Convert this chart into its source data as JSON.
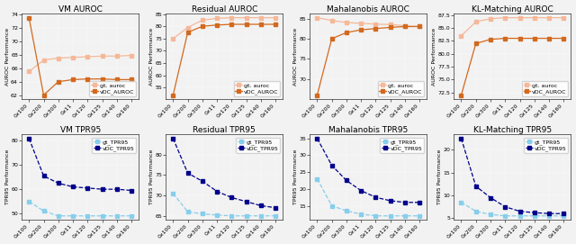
{
  "x_labels": [
    "0x100",
    "0x200",
    "0x300",
    "0x11",
    "0x120",
    "0x125",
    "0x140",
    "0x160"
  ],
  "vm_auroc": {
    "title": "VM AUROC",
    "ylabel": "AUROC Performance",
    "gt_auroc": [
      65.5,
      67.2,
      67.5,
      67.6,
      67.7,
      67.8,
      67.8,
      67.9
    ],
    "vdc_auroc": [
      73.5,
      62.0,
      64.0,
      64.3,
      64.4,
      64.4,
      64.3,
      64.3
    ],
    "gt_color": "#f5b899",
    "vdc_color": "#d2691e",
    "ylim_low": 73.5,
    "ylim_high": 68.5
  },
  "residual_auroc": {
    "title": "Residual AUROC",
    "ylabel": "AUROC Performance",
    "gt_auroc": [
      75.0,
      79.5,
      82.5,
      83.2,
      83.5,
      83.5,
      83.5,
      83.5
    ],
    "vdc_auroc": [
      52.0,
      77.5,
      80.0,
      80.5,
      80.8,
      80.8,
      80.8,
      80.8
    ],
    "gt_color": "#f5b899",
    "vdc_color": "#d2691e",
    "ylim_low": 52.0,
    "ylim_high": 84.0
  },
  "mahal_auroc": {
    "title": "Mahalanobis AUROC",
    "ylabel": "AUROC Performance",
    "gt_auroc": [
      85.2,
      84.5,
      84.0,
      83.8,
      83.6,
      83.5,
      83.2,
      83.0
    ],
    "vdc_auroc": [
      66.0,
      80.0,
      81.5,
      82.2,
      82.5,
      82.8,
      83.0,
      83.0
    ],
    "gt_color": "#f5b899",
    "vdc_color": "#d2691e",
    "ylim_low": 66.0,
    "ylim_high": 86.0
  },
  "kl_auroc": {
    "title": "KL-Matching AUROC",
    "ylabel": "AUROC Performance",
    "gt_auroc": [
      83.5,
      86.2,
      86.8,
      87.0,
      87.0,
      87.0,
      87.0,
      87.0
    ],
    "vdc_auroc": [
      72.0,
      82.0,
      82.8,
      83.0,
      83.0,
      83.0,
      83.0,
      83.0
    ],
    "gt_color": "#f5b899",
    "vdc_color": "#d2691e",
    "ylim_low": 71.5,
    "ylim_high": 87.5
  },
  "vm_tpr95": {
    "title": "VM TPR95",
    "ylabel": "TPR95 Performance",
    "gt_tpr95": [
      55.0,
      51.0,
      49.0,
      49.0,
      49.0,
      49.0,
      49.0,
      49.0
    ],
    "vdc_tpr95": [
      81.0,
      65.5,
      62.5,
      61.0,
      60.5,
      60.0,
      60.0,
      59.5
    ],
    "gt_color": "#87ceeb",
    "vdc_color": "#00008b",
    "ylim_low": 39.5,
    "ylim_high": 82.0
  },
  "residual_tpr95": {
    "title": "Residual TPR95",
    "ylabel": "TPR95 Performance",
    "gt_tpr95": [
      70.5,
      66.0,
      65.5,
      65.2,
      65.0,
      65.0,
      65.0,
      65.0
    ],
    "vdc_tpr95": [
      84.0,
      75.5,
      73.5,
      71.0,
      69.5,
      68.5,
      67.5,
      67.0
    ],
    "gt_color": "#87ceeb",
    "vdc_color": "#00008b",
    "ylim_low": 64.5,
    "ylim_high": 85.0
  },
  "mahal_tpr95": {
    "title": "Mahalanobis TPR95",
    "ylabel": "TPR95 Performance",
    "gt_tpr95": [
      23.0,
      15.0,
      13.5,
      12.5,
      12.0,
      12.0,
      12.0,
      12.0
    ],
    "vdc_tpr95": [
      35.0,
      27.0,
      22.5,
      19.5,
      17.5,
      16.5,
      16.0,
      16.0
    ],
    "gt_color": "#87ceeb",
    "vdc_color": "#00008b",
    "ylim_low": 11.0,
    "ylim_high": 36.0
  },
  "kl_tpr95": {
    "title": "KL-Matching TPR95",
    "ylabel": "TPR95 Performance",
    "gt_tpr95": [
      8.5,
      6.5,
      5.8,
      5.5,
      5.5,
      5.5,
      5.5,
      5.5
    ],
    "vdc_tpr95": [
      22.5,
      12.0,
      9.5,
      7.5,
      6.5,
      6.2,
      6.0,
      6.0
    ],
    "gt_color": "#87ceeb",
    "vdc_color": "#00008b",
    "ylim_low": 5.0,
    "ylim_high": 23.5
  },
  "marker": "s",
  "markersize": 2.5,
  "linewidth": 0.9,
  "legend_fontsize": 4.5,
  "title_fontsize": 6.5,
  "tick_fontsize": 4.5,
  "label_fontsize": 4.5,
  "bg_color": "#f2f2f2"
}
